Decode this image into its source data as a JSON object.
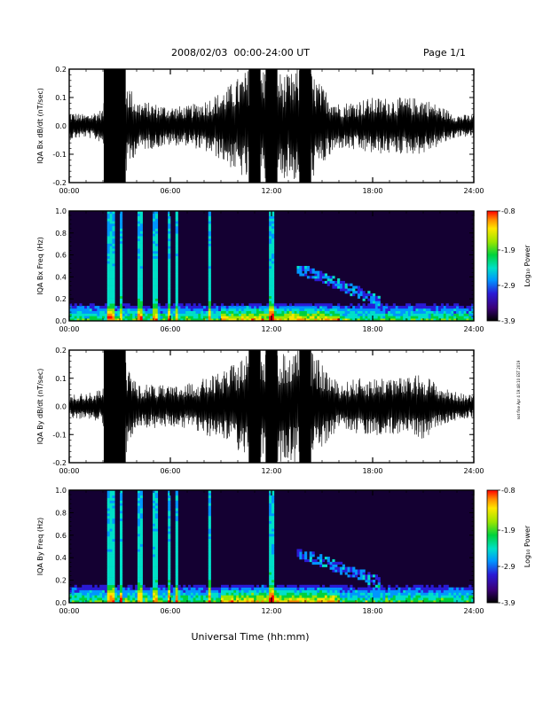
{
  "header": {
    "title": "2008/02/03  00:00-24:00 UT",
    "page": "Page 1/1"
  },
  "footer": {
    "xlabel": "Universal Time (hh:mm)"
  },
  "side_note": "not fine Apr 4 19:48:10 EST 2019",
  "colors": {
    "trace": "#000000",
    "spectrogram_background": "#140032",
    "colorscale": [
      "#000000",
      "#3b007a",
      "#2a1bd6",
      "#0096ff",
      "#00e0c8",
      "#00d23c",
      "#9be600",
      "#ffe600",
      "#ff8c00",
      "#ff0000"
    ]
  },
  "chart_data": [
    {
      "type": "line",
      "ylabel": "IQA Bx dB/dt (nT/sec)",
      "xlim": [
        "00:00",
        "24:00"
      ],
      "ylim": [
        -0.2,
        0.2
      ],
      "x_ticks": [
        "00:00",
        "06:00",
        "12:00",
        "18:00",
        "24:00"
      ],
      "y_ticks": [
        "-0.2",
        "-0.1",
        "0.0",
        "0.1",
        "0.2"
      ],
      "series": [
        {
          "x_hours": [
            0,
            1,
            2,
            2.4,
            3,
            4,
            5,
            6,
            7,
            8,
            9,
            10,
            11,
            12,
            13,
            14,
            15,
            16,
            17,
            18,
            19,
            20,
            21,
            22,
            23,
            24
          ],
          "amplitude": [
            0.05,
            0.04,
            0.06,
            0.22,
            0.22,
            0.09,
            0.08,
            0.07,
            0.07,
            0.09,
            0.12,
            0.17,
            0.22,
            0.2,
            0.18,
            0.22,
            0.14,
            0.08,
            0.09,
            0.1,
            0.1,
            0.1,
            0.1,
            0.07,
            0.04,
            0.04
          ]
        }
      ]
    },
    {
      "type": "heatmap",
      "ylabel": "IQA Bx Freq (Hz)",
      "xlim": [
        "00:00",
        "24:00"
      ],
      "ylim": [
        0.0,
        1.0
      ],
      "x_ticks": [
        "00:00",
        "06:00",
        "12:00",
        "18:00",
        "24:00"
      ],
      "y_ticks": [
        "0.0",
        "0.2",
        "0.4",
        "0.6",
        "0.8",
        "1.0"
      ],
      "colorbar": {
        "label": "Log₁₀ Power",
        "ticks": [
          "-0.8",
          "-1.9",
          "-2.9",
          "-3.9"
        ],
        "range": [
          -3.9,
          -0.8
        ]
      },
      "features": {
        "broadband_hours": [
          2.4,
          2.6,
          3.1,
          4.2,
          5.1,
          5.9,
          6.4,
          8.3,
          11.9,
          12.1
        ],
        "band_start": {
          "hour": 13.5,
          "freq": 0.48
        },
        "band_end": {
          "hour": 18.5,
          "freq": 0.18
        }
      }
    },
    {
      "type": "line",
      "ylabel": "IQA By dB/dt (nT/sec)",
      "xlim": [
        "00:00",
        "24:00"
      ],
      "ylim": [
        -0.2,
        0.2
      ],
      "x_ticks": [
        "00:00",
        "06:00",
        "12:00",
        "18:00",
        "24:00"
      ],
      "y_ticks": [
        "-0.2",
        "-0.1",
        "0.0",
        "0.1",
        "0.2"
      ],
      "series": [
        {
          "x_hours": [
            0,
            1,
            2,
            2.4,
            3,
            4,
            5,
            6,
            7,
            8,
            9,
            10,
            11,
            12,
            13,
            14,
            15,
            16,
            17,
            18,
            19,
            20,
            21,
            22,
            23,
            24
          ],
          "amplitude": [
            0.04,
            0.05,
            0.06,
            0.22,
            0.22,
            0.08,
            0.08,
            0.07,
            0.08,
            0.1,
            0.12,
            0.16,
            0.22,
            0.21,
            0.19,
            0.22,
            0.15,
            0.08,
            0.1,
            0.1,
            0.11,
            0.1,
            0.12,
            0.07,
            0.05,
            0.04
          ]
        }
      ]
    },
    {
      "type": "heatmap",
      "ylabel": "IQA By Freq (Hz)",
      "xlim": [
        "00:00",
        "24:00"
      ],
      "ylim": [
        0.0,
        1.0
      ],
      "x_ticks": [
        "00:00",
        "06:00",
        "12:00",
        "18:00",
        "24:00"
      ],
      "y_ticks": [
        "0.0",
        "0.2",
        "0.4",
        "0.6",
        "0.8",
        "1.0"
      ],
      "colorbar": {
        "label": "Log₁₀ Power",
        "ticks": [
          "-0.8",
          "-1.9",
          "-2.9",
          "-3.9"
        ],
        "range": [
          -3.9,
          -0.8
        ]
      },
      "features": {
        "broadband_hours": [
          2.4,
          2.6,
          3.1,
          4.2,
          5.1,
          5.9,
          6.4,
          8.3,
          11.9,
          12.1
        ],
        "band_start": {
          "hour": 13.5,
          "freq": 0.45
        },
        "band_end": {
          "hour": 18.5,
          "freq": 0.18
        }
      }
    }
  ]
}
